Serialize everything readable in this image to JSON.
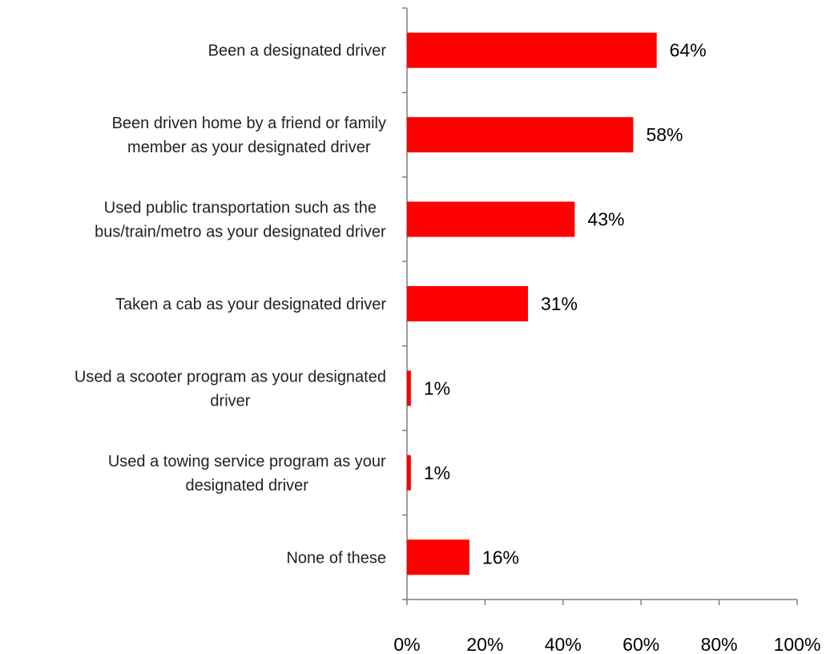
{
  "chart_data": {
    "type": "bar",
    "orientation": "horizontal",
    "categories": [
      [
        "Been a designated driver"
      ],
      [
        "Been driven home by a friend or family",
        "member as your designated driver"
      ],
      [
        "Used public transportation such as the",
        "bus/train/metro as your designated driver"
      ],
      [
        "Taken a cab as your designated driver"
      ],
      [
        "Used a scooter program as your designated",
        "driver"
      ],
      [
        "Used a towing service program as your",
        "designated driver"
      ],
      [
        "None of these"
      ]
    ],
    "values": [
      64,
      58,
      43,
      31,
      1,
      1,
      16
    ],
    "value_labels": [
      "64%",
      "58%",
      "43%",
      "31%",
      "1%",
      "1%",
      "16%"
    ],
    "xlim": [
      0,
      100
    ],
    "x_ticks": [
      0,
      20,
      40,
      60,
      80,
      100
    ],
    "x_tick_labels": [
      "0%",
      "20%",
      "40%",
      "60%",
      "80%",
      "100%"
    ],
    "title": "",
    "xlabel": "",
    "ylabel": "",
    "grid": false,
    "legend": "none",
    "bar_color": "#ff0000"
  }
}
